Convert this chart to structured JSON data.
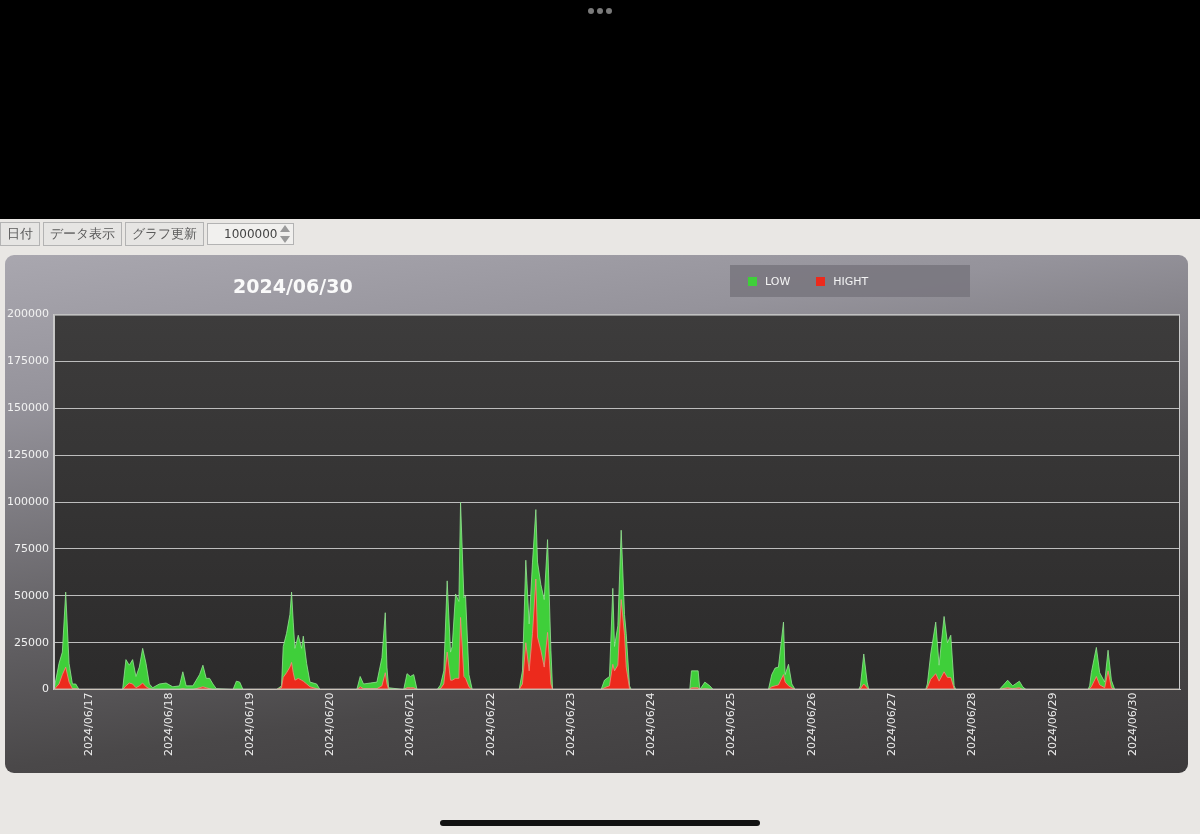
{
  "chart_data": {
    "type": "area",
    "title": "2024/06/30",
    "annotations": [
      "日付",
      "データ表示",
      "グラフ更新",
      "1000000"
    ],
    "x": [
      "2024-06-16T13:30",
      "2024-06-16T15:00",
      "2024-06-16T16:00",
      "2024-06-16T17:00",
      "2024-06-16T18:00",
      "2024-06-16T19:00",
      "2024-06-16T20:00",
      "2024-06-16T21:00",
      "2024-06-17T10:00",
      "2024-06-17T11:00",
      "2024-06-17T12:00",
      "2024-06-17T13:00",
      "2024-06-17T14:00",
      "2024-06-17T15:00",
      "2024-06-17T16:00",
      "2024-06-17T17:00",
      "2024-06-17T18:00",
      "2024-06-17T19:00",
      "2024-06-17T21:00",
      "2024-06-17T23:00",
      "2024-06-18T01:00",
      "2024-06-18T03:00",
      "2024-06-18T04:00",
      "2024-06-18T05:00",
      "2024-06-18T07:00",
      "2024-06-18T08:00",
      "2024-06-18T09:00",
      "2024-06-18T10:00",
      "2024-06-18T11:00",
      "2024-06-18T12:00",
      "2024-06-18T13:00",
      "2024-06-18T14:00",
      "2024-06-18T19:00",
      "2024-06-18T20:00",
      "2024-06-18T21:00",
      "2024-06-18T22:00",
      "2024-06-19T08:00",
      "2024-06-19T09:30",
      "2024-06-19T10:00",
      "2024-06-19T11:00",
      "2024-06-19T12:00",
      "2024-06-19T12:30",
      "2024-06-19T13:00",
      "2024-06-19T13:30",
      "2024-06-19T14:30",
      "2024-06-19T15:30",
      "2024-06-19T16:00",
      "2024-06-19T17:00",
      "2024-06-19T18:00",
      "2024-06-19T20:00",
      "2024-06-19T21:00",
      "2024-06-20T08:00",
      "2024-06-20T09:00",
      "2024-06-20T10:00",
      "2024-06-20T12:00",
      "2024-06-20T14:00",
      "2024-06-20T15:30",
      "2024-06-20T16:30",
      "2024-06-20T17:00",
      "2024-06-20T17:30",
      "2024-06-20T22:00",
      "2024-06-20T23:00",
      "2024-06-21T00:00",
      "2024-06-21T01:00",
      "2024-06-21T02:00",
      "2024-06-21T08:00",
      "2024-06-21T09:00",
      "2024-06-21T10:00",
      "2024-06-21T11:00",
      "2024-06-21T12:00",
      "2024-06-21T12:30",
      "2024-06-21T13:30",
      "2024-06-21T14:30",
      "2024-06-21T15:00",
      "2024-06-21T16:00",
      "2024-06-21T16:30",
      "2024-06-21T17:30",
      "2024-06-21T18:30",
      "2024-06-22T08:30",
      "2024-06-22T09:30",
      "2024-06-22T10:30",
      "2024-06-22T11:30",
      "2024-06-22T12:30",
      "2024-06-22T13:30",
      "2024-06-22T14:00",
      "2024-06-22T15:00",
      "2024-06-22T16:00",
      "2024-06-22T17:00",
      "2024-06-22T18:00",
      "2024-06-22T18:30",
      "2024-06-23T09:00",
      "2024-06-23T10:00",
      "2024-06-23T11:30",
      "2024-06-23T12:30",
      "2024-06-23T13:00",
      "2024-06-23T14:00",
      "2024-06-23T15:00",
      "2024-06-23T16:00",
      "2024-06-23T16:30",
      "2024-06-23T17:30",
      "2024-06-23T18:00",
      "2024-06-24T11:30",
      "2024-06-24T12:00",
      "2024-06-24T14:00",
      "2024-06-24T14:30",
      "2024-06-24T16:00",
      "2024-06-24T17:30",
      "2024-06-24T18:30",
      "2024-06-25T11:00",
      "2024-06-25T12:00",
      "2024-06-25T13:00",
      "2024-06-25T14:00",
      "2024-06-25T15:30",
      "2024-06-25T16:00",
      "2024-06-25T17:00",
      "2024-06-25T18:00",
      "2024-06-25T19:00",
      "2024-06-26T14:00",
      "2024-06-26T14:30",
      "2024-06-26T15:30",
      "2024-06-26T16:30",
      "2024-06-26T17:00",
      "2024-06-27T10:00",
      "2024-06-27T10:30",
      "2024-06-27T11:30",
      "2024-06-27T13:00",
      "2024-06-27T14:00",
      "2024-06-27T15:30",
      "2024-06-27T16:30",
      "2024-06-27T17:30",
      "2024-06-27T18:30",
      "2024-06-27T19:00",
      "2024-06-28T08:00",
      "2024-06-28T09:00",
      "2024-06-28T10:30",
      "2024-06-28T12:00",
      "2024-06-28T14:00",
      "2024-06-28T15:00",
      "2024-06-28T16:00",
      "2024-06-29T10:30",
      "2024-06-29T11:00",
      "2024-06-29T11:30",
      "2024-06-29T13:00",
      "2024-06-29T14:00",
      "2024-06-29T15:30",
      "2024-06-29T16:30",
      "2024-06-29T17:30",
      "2024-06-29T18:30",
      "2024-06-30T13:30"
    ],
    "series": [
      {
        "name": "LOW",
        "color": "#3fcf3a",
        "values": [
          0,
          14000,
          20000,
          52000,
          14000,
          3000,
          3000,
          0,
          0,
          16000,
          13000,
          16000,
          7000,
          12000,
          22000,
          14000,
          3000,
          1000,
          3000,
          3500,
          1500,
          2000,
          9500,
          2000,
          2000,
          5000,
          8000,
          13000,
          6000,
          6000,
          3000,
          500,
          0,
          4500,
          4000,
          0,
          0,
          2000,
          23000,
          30000,
          40000,
          52000,
          36000,
          22000,
          29000,
          22000,
          28500,
          14000,
          4000,
          3000,
          0,
          0,
          7000,
          3000,
          3500,
          4000,
          17000,
          41000,
          12000,
          1000,
          0,
          8500,
          7000,
          8000,
          0,
          0,
          2500,
          10000,
          58000,
          20000,
          23000,
          51000,
          47000,
          100000,
          49000,
          50000,
          8000,
          0,
          0,
          10000,
          69000,
          35000,
          68000,
          96000,
          68000,
          56000,
          48000,
          80000,
          21000,
          0,
          0,
          5000,
          7000,
          54000,
          23000,
          34000,
          85000,
          40000,
          30000,
          2000,
          0,
          0,
          10000,
          10000,
          0,
          4000,
          2000,
          0,
          0,
          8000,
          11500,
          12000,
          36000,
          8000,
          13500,
          3000,
          0,
          0,
          2000,
          19000,
          4000,
          0,
          0,
          3000,
          19000,
          36000,
          13000,
          39000,
          25000,
          29000,
          2000,
          0,
          0,
          2000,
          5000,
          2000,
          4500,
          1500,
          0,
          0,
          2000,
          9000,
          22500,
          9000,
          4000,
          21000,
          5000,
          0,
          0
        ]
      },
      {
        "name": "HIGHT",
        "color": "#ec2a1c",
        "values": [
          0,
          3000,
          8000,
          12000,
          4000,
          500,
          500,
          0,
          0,
          2000,
          3500,
          3000,
          1000,
          2000,
          3500,
          1500,
          500,
          0,
          0,
          0,
          0,
          0,
          500,
          0,
          0,
          500,
          1000,
          1500,
          1000,
          500,
          0,
          0,
          0,
          0,
          0,
          0,
          0,
          1000,
          6500,
          9000,
          12000,
          14500,
          9000,
          5000,
          6000,
          5000,
          4500,
          3000,
          1500,
          500,
          0,
          0,
          1500,
          500,
          500,
          500,
          2000,
          9000,
          3000,
          0,
          0,
          1000,
          1000,
          1000,
          0,
          0,
          500,
          3000,
          20000,
          5000,
          5000,
          6000,
          6000,
          38500,
          7000,
          6000,
          1500,
          0,
          0,
          3000,
          25000,
          10000,
          30000,
          59000,
          28000,
          21000,
          12000,
          30500,
          3000,
          0,
          0,
          1000,
          2000,
          13500,
          10000,
          13000,
          48000,
          29000,
          12000,
          500,
          0,
          0,
          1000,
          1000,
          0,
          500,
          0,
          0,
          0,
          1500,
          2000,
          2500,
          8000,
          4000,
          2000,
          1000,
          0,
          0,
          500,
          3000,
          1000,
          0,
          0,
          1000,
          5500,
          8500,
          4500,
          9500,
          6500,
          6500,
          500,
          0,
          0,
          500,
          1000,
          500,
          1000,
          0,
          0,
          0,
          500,
          1500,
          7000,
          2500,
          1000,
          10000,
          1000,
          0,
          0
        ]
      }
    ],
    "xlim": [
      "2024-06-16T13:30",
      "2024-06-30T14:00"
    ],
    "xticks": [
      {
        "value": "2024-06-17",
        "label": "2024/06/17"
      },
      {
        "value": "2024-06-18",
        "label": "2024/06/18"
      },
      {
        "value": "2024-06-19",
        "label": "2024/06/19"
      },
      {
        "value": "2024-06-20",
        "label": "2024/06/20"
      },
      {
        "value": "2024-06-21",
        "label": "2024/06/21"
      },
      {
        "value": "2024-06-22",
        "label": "2024/06/22"
      },
      {
        "value": "2024-06-23",
        "label": "2024/06/23"
      },
      {
        "value": "2024-06-24",
        "label": "2024/06/24"
      },
      {
        "value": "2024-06-25",
        "label": "2024/06/25"
      },
      {
        "value": "2024-06-26",
        "label": "2024/06/26"
      },
      {
        "value": "2024-06-27",
        "label": "2024/06/27"
      },
      {
        "value": "2024-06-28",
        "label": "2024/06/28"
      },
      {
        "value": "2024-06-29",
        "label": "2024/06/29"
      },
      {
        "value": "2024-06-30",
        "label": "2024/06/30"
      }
    ],
    "ylim": [
      0,
      200000
    ],
    "yticks": [
      0,
      25000,
      50000,
      75000,
      100000,
      125000,
      150000,
      175000,
      200000
    ],
    "grid": "y",
    "legend": "top right",
    "marker": "none"
  }
}
